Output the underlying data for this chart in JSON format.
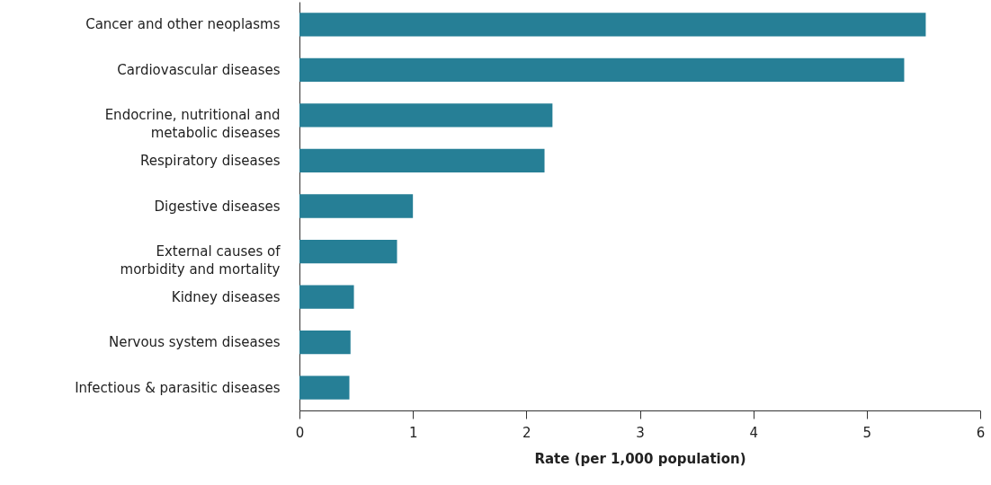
{
  "chart_data": {
    "type": "bar",
    "orientation": "horizontal",
    "xlabel": "Rate (per 1,000 population)",
    "categories": [
      "Cancer and other neoplasms",
      "Cardiovascular diseases",
      "Endocrine, nutritional and metabolic diseases",
      "Respiratory diseases",
      "Digestive diseases",
      "External causes of morbidity and mortality",
      "Kidney diseases",
      "Nervous system diseases",
      "Infectious & parasitic diseases"
    ],
    "values": [
      5.52,
      5.33,
      2.23,
      2.16,
      1.0,
      0.86,
      0.48,
      0.45,
      0.44
    ],
    "color": "#267f96",
    "xlim": [
      0,
      6
    ],
    "xticks": [
      0,
      1,
      2,
      3,
      4,
      5,
      6
    ],
    "grid": false
  }
}
